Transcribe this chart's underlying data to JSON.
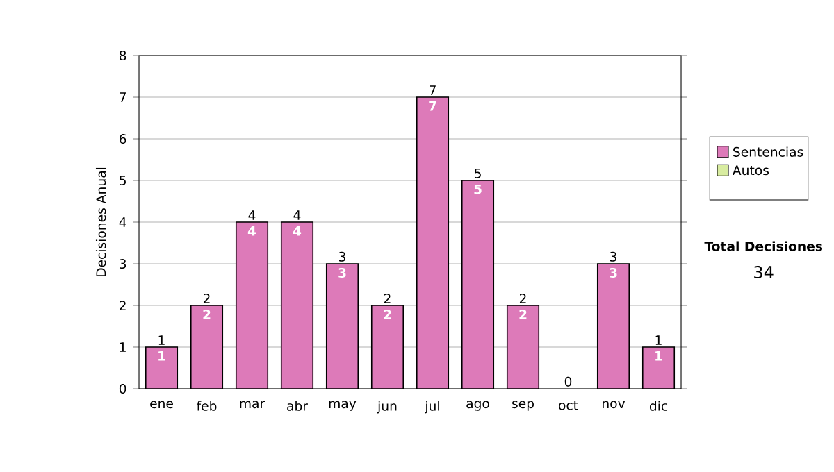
{
  "chart_data": {
    "type": "bar",
    "stacked": true,
    "ylabel": "Decisiones Anual",
    "categories": [
      "ene",
      "feb",
      "mar",
      "abr",
      "may",
      "jun",
      "jul",
      "ago",
      "sep",
      "oct",
      "nov",
      "dic"
    ],
    "series": [
      {
        "name": "Sentencias",
        "color": "#dd7ab9",
        "values": [
          1,
          2,
          4,
          4,
          3,
          2,
          7,
          5,
          2,
          0,
          3,
          1
        ],
        "value_labels": [
          "1",
          "2",
          "4",
          "4",
          "3",
          "2",
          "7",
          "5",
          "2",
          null,
          "3",
          "1"
        ]
      },
      {
        "name": "Autos",
        "color": "#d8eca0",
        "values": [
          0,
          0,
          0,
          0,
          0,
          0,
          0,
          0,
          0,
          0,
          0,
          0
        ]
      }
    ],
    "totals": [
      "1",
      "2",
      "4",
      "4",
      "3",
      "2",
      "7",
      "5",
      "2",
      "0",
      "3",
      "1"
    ],
    "ylim": [
      0,
      8
    ],
    "yticks": [
      0,
      1,
      2,
      3,
      4,
      5,
      6,
      7,
      8
    ],
    "grid": "y",
    "legend": "right",
    "annotations": [
      "Total Decisiones",
      "34"
    ]
  }
}
